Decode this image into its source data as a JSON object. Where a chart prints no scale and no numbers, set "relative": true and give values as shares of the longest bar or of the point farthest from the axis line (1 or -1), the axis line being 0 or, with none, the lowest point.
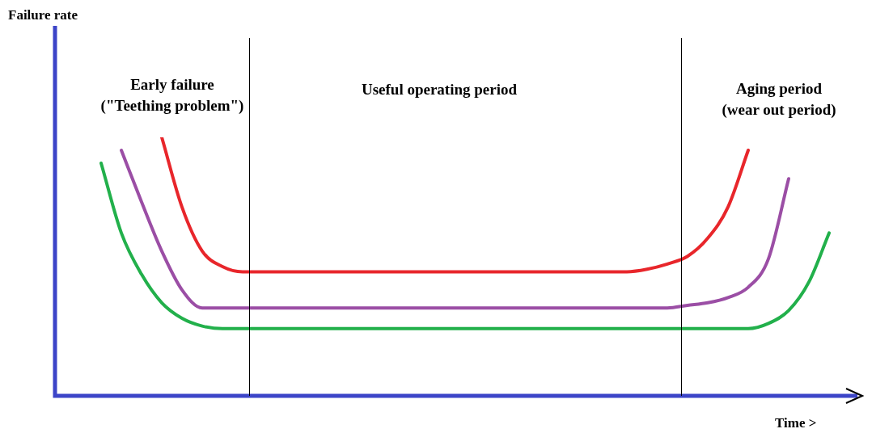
{
  "chart_data": {
    "type": "line",
    "relative": true,
    "marker": "none",
    "line_style": "solid",
    "xlabel": "Time >",
    "annotations": [
      "Early failure\n(\"Teething problem\")",
      "Useful operating period",
      "Aging period\n(wear out  period)",
      "Failure rate"
    ],
    "categories": [
      null,
      null,
      null,
      null,
      null,
      null,
      null,
      null,
      null,
      null,
      null,
      null,
      null,
      null,
      null,
      null,
      null,
      null,
      null,
      null,
      null,
      null,
      null,
      null,
      null,
      null,
      null,
      null,
      null,
      null,
      null,
      null,
      null,
      null,
      null,
      null,
      null,
      null,
      null
    ],
    "series": [
      {
        "color": "#e8262b",
        "values": [
          null,
          null,
          null,
          null,
          null,
          1.0,
          0.73,
          0.56,
          0.5,
          0.48,
          0.48,
          0.48,
          0.48,
          0.48,
          0.48,
          0.48,
          0.48,
          0.48,
          0.48,
          0.48,
          0.48,
          0.48,
          0.48,
          0.48,
          0.48,
          0.48,
          0.48,
          0.48,
          0.48,
          0.49,
          0.51,
          0.54,
          0.61,
          0.73,
          0.95,
          null,
          null,
          null,
          null
        ]
      },
      {
        "color": "#9b4ea5",
        "values": [
          null,
          null,
          null,
          0.95,
          0.75,
          0.56,
          0.41,
          0.34,
          0.34,
          0.34,
          0.34,
          0.34,
          0.34,
          0.34,
          0.34,
          0.34,
          0.34,
          0.34,
          0.34,
          0.34,
          0.34,
          0.34,
          0.34,
          0.34,
          0.34,
          0.34,
          0.34,
          0.34,
          0.34,
          0.34,
          0.34,
          0.35,
          0.36,
          0.38,
          0.42,
          0.53,
          0.84,
          null,
          null
        ]
      },
      {
        "color": "#22b04b",
        "values": [
          null,
          null,
          0.9,
          0.63,
          0.47,
          0.36,
          0.3,
          0.27,
          0.26,
          0.26,
          0.26,
          0.26,
          0.26,
          0.26,
          0.26,
          0.26,
          0.26,
          0.26,
          0.26,
          0.26,
          0.26,
          0.26,
          0.26,
          0.26,
          0.26,
          0.26,
          0.26,
          0.26,
          0.26,
          0.26,
          0.26,
          0.26,
          0.26,
          0.26,
          0.26,
          0.28,
          0.33,
          0.44,
          0.63
        ]
      }
    ]
  }
}
